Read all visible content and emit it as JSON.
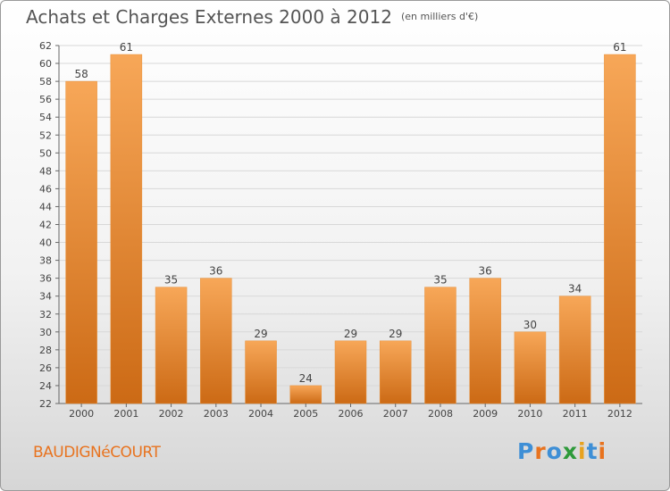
{
  "title": {
    "main": "Achats et Charges Externes 2000 à 2012",
    "unit": "(en milliers d'€)"
  },
  "city": "BAUDIGNéCOURT",
  "logo": {
    "text": "Proxiti",
    "letters": [
      {
        "ch": "P",
        "color": "#3e8fd6"
      },
      {
        "ch": "r",
        "color": "#e8731f"
      },
      {
        "ch": "o",
        "color": "#3e8fd6"
      },
      {
        "ch": "x",
        "color": "#2e9a3a"
      },
      {
        "ch": "i",
        "color": "#e8a21f"
      },
      {
        "ch": "t",
        "color": "#3e8fd6"
      },
      {
        "ch": "i",
        "color": "#e8731f"
      }
    ]
  },
  "colors": {
    "bar_light": "#f7a758",
    "bar_dark": "#cc6a15",
    "axis": "#666666",
    "grid": "#d8d8d8"
  },
  "chart_data": {
    "type": "bar",
    "categories": [
      "2000",
      "2001",
      "2002",
      "2003",
      "2004",
      "2005",
      "2006",
      "2007",
      "2008",
      "2009",
      "2010",
      "2011",
      "2012"
    ],
    "values": [
      58,
      61,
      35,
      36,
      29,
      24,
      29,
      29,
      35,
      36,
      30,
      34,
      61
    ],
    "ylim": [
      22,
      62
    ],
    "yticks": [
      22,
      24,
      26,
      28,
      30,
      32,
      34,
      36,
      38,
      40,
      42,
      44,
      46,
      48,
      50,
      52,
      54,
      56,
      58,
      60,
      62
    ],
    "grid": true
  }
}
